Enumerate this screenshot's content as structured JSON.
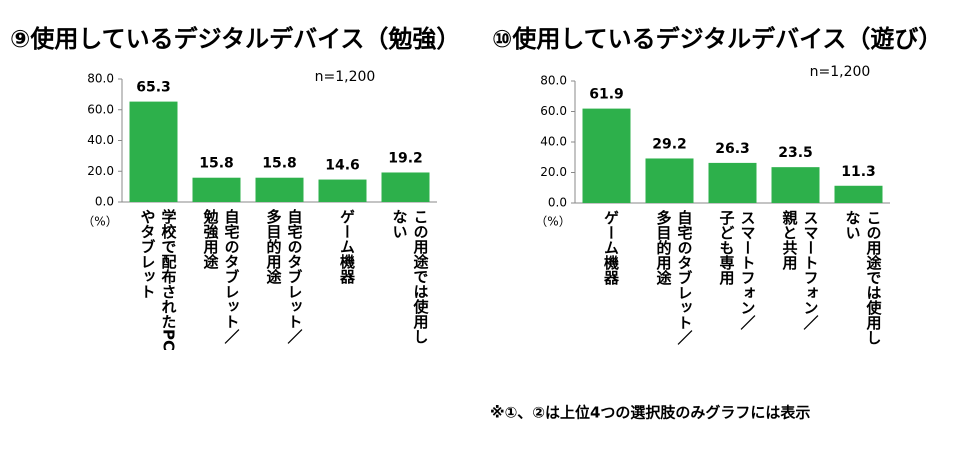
{
  "chart_data": [
    {
      "type": "bar",
      "title": "⑨使用しているデジタルデバイス（勉強）",
      "annotation": "n=1,200",
      "unit_label": "（%）",
      "categories": [
        "学校で配布されたPC\nやタブレット",
        "自宅のタブレット／\n勉強用途",
        "自宅のタブレット／\n多目的用途",
        "ゲーム機器",
        "この用途では使用し\nない"
      ],
      "values": [
        65.3,
        15.8,
        15.8,
        14.6,
        19.2
      ],
      "color": "#2db04b",
      "ylim": [
        0,
        80
      ],
      "yticks": [
        {
          "value": 0,
          "label": "0.0"
        },
        {
          "value": 20,
          "label": "20.0"
        },
        {
          "value": 40,
          "label": "40.0"
        },
        {
          "value": 60,
          "label": "60.0"
        },
        {
          "value": 80,
          "label": "80.0"
        }
      ]
    },
    {
      "type": "bar",
      "title": "⑩使用しているデジタルデバイス（遊び）",
      "annotation": "n=1,200",
      "unit_label": "（%）",
      "categories": [
        "ゲーム機器",
        "自宅のタブレット／\n多目的用途",
        "スマートフォン／\n子ども専用",
        "スマートフォン／\n親と共用",
        "この用途では使用し\nない"
      ],
      "values": [
        61.9,
        29.2,
        26.3,
        23.5,
        11.3
      ],
      "color": "#2db04b",
      "ylim": [
        0,
        80
      ],
      "yticks": [
        {
          "value": 0,
          "label": "0.0"
        },
        {
          "value": 20,
          "label": "20.0"
        },
        {
          "value": 40,
          "label": "40.0"
        },
        {
          "value": 60,
          "label": "60.0"
        },
        {
          "value": 80,
          "label": "80.0"
        }
      ]
    }
  ],
  "footnote": "※①、②は上位4つの選択肢のみグラフには表示"
}
